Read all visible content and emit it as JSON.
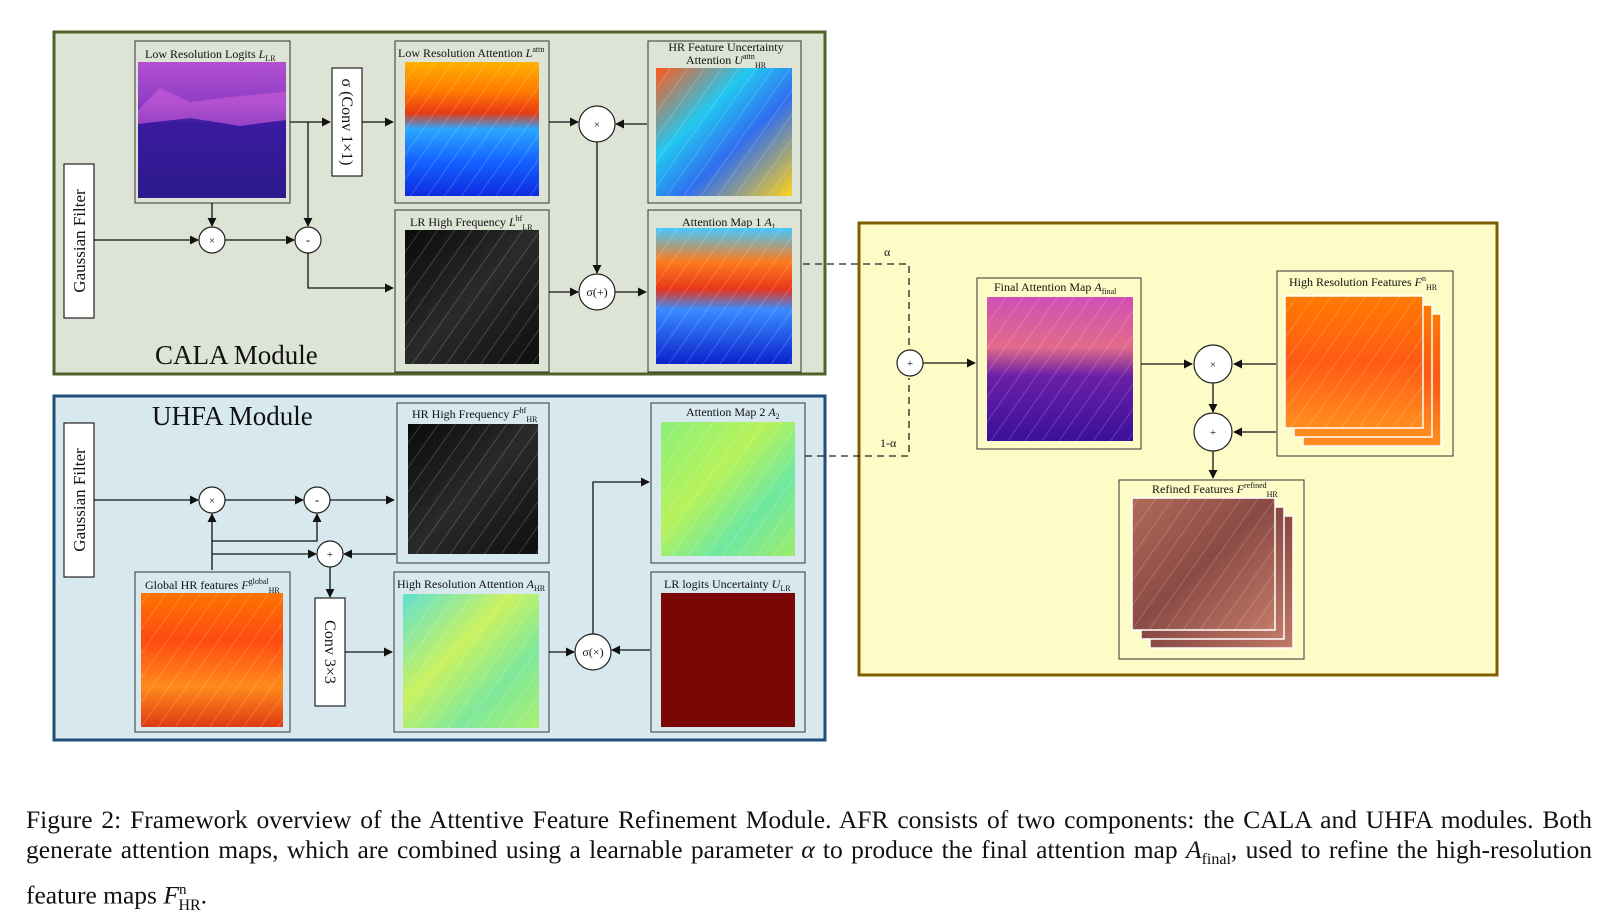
{
  "modules": {
    "cala": "CALA Module",
    "uhfa": "UHFA Module"
  },
  "filters": {
    "cala_gaussian": "Gaussian Filter",
    "uhfa_gaussian": "Gaussian Filter"
  },
  "ops": {
    "conv1": "σ (Conv 1×1)",
    "conv3": "Conv 3×3",
    "mul": "×",
    "sub": "-",
    "add": "+",
    "sigma_add": "σ(+)",
    "sigma_mul": "σ(×)"
  },
  "panels": {
    "lr_logits": {
      "text": "Low Resolution Logits ",
      "sym": "L",
      "sub": "LR"
    },
    "lr_attention": {
      "text": "Low Resolution Attention ",
      "sym": "L",
      "sup": "attn"
    },
    "hr_uncert_1": "HR Feature Uncertainty",
    "hr_uncert_2": {
      "text": "Attention ",
      "sym": "U",
      "sup": "attn",
      "sub": "HR"
    },
    "lr_hf": {
      "text": "LR High Frequency ",
      "sym": "L",
      "sup": "hf",
      "sub": "LR"
    },
    "attn_map1": {
      "text": "Attention Map 1 ",
      "sym": "A",
      "sub": "1"
    },
    "hr_hf": {
      "text": "HR High Frequency ",
      "sym": "F",
      "sup": "hf",
      "sub": "HR"
    },
    "attn_map2": {
      "text": "Attention Map 2 ",
      "sym": "A",
      "sub": "2"
    },
    "global_hr": {
      "text": "Global HR features ",
      "sym": "F",
      "sup": "global",
      "sub": "HR"
    },
    "hr_attention": {
      "text": "High Resolution Attention ",
      "sym": "A",
      "sub": "HR"
    },
    "lr_uncert": {
      "text": "LR logits Uncertainty ",
      "sym": "U",
      "sub": "LR"
    },
    "final_attn": {
      "text": "Final Attention Map ",
      "sym": "A",
      "sub": "final"
    },
    "hr_features": {
      "text": "High Resolution Features ",
      "sym": "F",
      "sup": "n",
      "sub": "HR"
    },
    "refined": {
      "text": "Refined Features ",
      "sym": "F",
      "sup": "refined",
      "sub": "HR"
    }
  },
  "params": {
    "alpha": "α",
    "one_minus_alpha": "1-α"
  },
  "caption": {
    "part1": "Figure 2: Framework overview of the Attentive Feature Refinement Module. AFR consists of two components: the CALA and UHFA modules. Both generate attention maps, which are combined using a learnable parameter ",
    "alpha": "α",
    "part2": " to produce the final attention map ",
    "afinal_sym": "A",
    "afinal_sub": "final",
    "part3": ", used to refine the high-resolution feature maps ",
    "fhr_sym": "F",
    "fhr_sup": "n",
    "fhr_sub": "HR",
    "part4": "."
  },
  "colors": {
    "cala_bg": "#dde3d5",
    "cala_border": "#4f6228",
    "uhfa_bg": "#d7e8ee",
    "uhfa_border": "#1f4e79",
    "afr_bg": "#fdfbc6",
    "afr_border": "#7f6000"
  }
}
